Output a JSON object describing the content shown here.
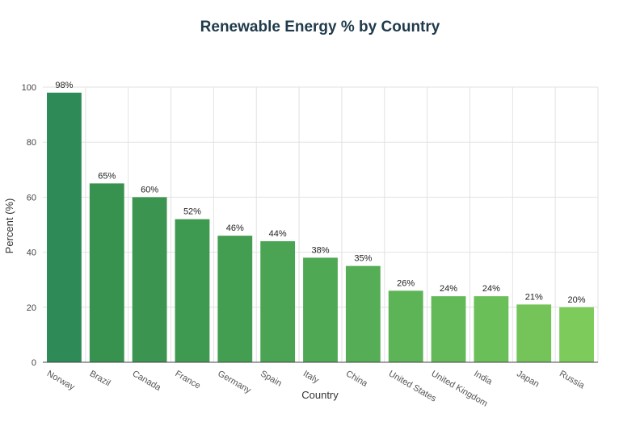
{
  "chart_data": {
    "type": "bar",
    "title": "Renewable Energy % by Country",
    "xlabel": "Country",
    "ylabel": "Percent (%)",
    "ylim": [
      0,
      100
    ],
    "yticks": [
      0,
      20,
      40,
      60,
      80,
      100
    ],
    "grid": true,
    "categories": [
      "Norway",
      "Brazil",
      "Canada",
      "France",
      "Germany",
      "Spain",
      "Italy",
      "China",
      "United States",
      "United Kingdom",
      "India",
      "Japan",
      "Russia"
    ],
    "values": [
      98,
      65,
      60,
      52,
      46,
      44,
      38,
      35,
      26,
      24,
      24,
      21,
      20
    ],
    "data_labels": [
      "98%",
      "65%",
      "60%",
      "52%",
      "46%",
      "44%",
      "38%",
      "35%",
      "26%",
      "24%",
      "24%",
      "21%",
      "20%"
    ],
    "colors": [
      "#2e8b57",
      "#37914f",
      "#3b9550",
      "#3f9a51",
      "#449e52",
      "#4aa453",
      "#4fa854",
      "#55ad55",
      "#5db456",
      "#63b957",
      "#6bbf58",
      "#74c45a",
      "#7ccb5b"
    ]
  }
}
